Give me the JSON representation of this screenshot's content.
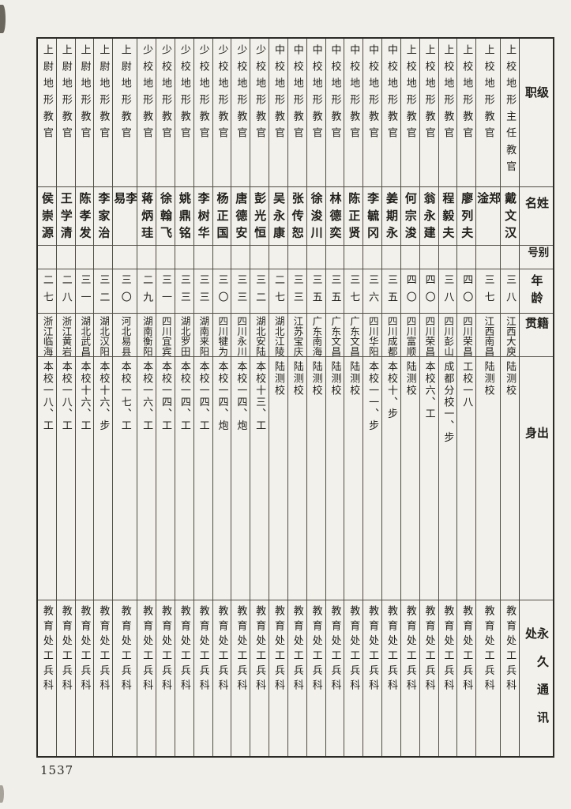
{
  "page": {
    "number": "1537"
  },
  "table": {
    "headers": {
      "rank": "级职",
      "name": "姓名",
      "alias": "别号",
      "age": "年龄",
      "native": "籍贯",
      "origin": "出身",
      "address": "永久通讯处"
    },
    "people": [
      {
        "rank": "上校地形主任教官",
        "name": "戴文汉",
        "alias": "",
        "age": "三八",
        "native": "江西大庾",
        "origin": "陆测校",
        "address": "教育处工兵科"
      },
      {
        "rank": "上校地形教官",
        "name": "郑淦",
        "alias": "",
        "age": "三七",
        "native": "江西南昌",
        "origin": "陆测校",
        "address": "教育处工兵科"
      },
      {
        "rank": "上校地形教官",
        "name": "廖列夫",
        "alias": "",
        "age": "四〇",
        "native": "四川荣昌",
        "origin": "工校一八",
        "address": "教育处工兵科"
      },
      {
        "rank": "上校地形教官",
        "name": "程毅夫",
        "alias": "",
        "age": "三八",
        "native": "四川彭山",
        "origin": "成都分校一、步",
        "address": "教育处工兵科"
      },
      {
        "rank": "上校地形教官",
        "name": "翁永建",
        "alias": "",
        "age": "四〇",
        "native": "四川荣昌",
        "origin": "本校六、工",
        "address": "教育处工兵科"
      },
      {
        "rank": "上校地形教官",
        "name": "何宗浚",
        "alias": "",
        "age": "四〇",
        "native": "四川富顺",
        "origin": "陆测校",
        "address": "教育处工兵科"
      },
      {
        "rank": "中校地形教官",
        "name": "姜期永",
        "alias": "",
        "age": "三五",
        "native": "四川成都",
        "origin": "本校十、步",
        "address": "教育处工兵科"
      },
      {
        "rank": "中校地形教官",
        "name": "李毓冈",
        "alias": "",
        "age": "三六",
        "native": "四川华阳",
        "origin": "本校一一、步",
        "address": "教育处工兵科"
      },
      {
        "rank": "中校地形教官",
        "name": "陈正贤",
        "alias": "",
        "age": "三七",
        "native": "广东文昌",
        "origin": "陆测校",
        "address": "教育处工兵科"
      },
      {
        "rank": "中校地形教官",
        "name": "林德奕",
        "alias": "",
        "age": "三五",
        "native": "广东文昌",
        "origin": "陆测校",
        "address": "教育处工兵科"
      },
      {
        "rank": "中校地形教官",
        "name": "徐浚川",
        "alias": "",
        "age": "三五",
        "native": "广东南海",
        "origin": "陆测校",
        "address": "教育处工兵科"
      },
      {
        "rank": "中校地形教官",
        "name": "张传恕",
        "alias": "",
        "age": "三三",
        "native": "江苏宝庆",
        "origin": "陆测校",
        "address": "教育处工兵科"
      },
      {
        "rank": "中校地形教官",
        "name": "吴永康",
        "alias": "",
        "age": "二七",
        "native": "湖北江陵",
        "origin": "陆测校",
        "address": "教育处工兵科"
      },
      {
        "rank": "少校地形教官",
        "name": "彭光恒",
        "alias": "",
        "age": "三二",
        "native": "湖北安陆",
        "origin": "本校十三、工",
        "address": "教育处工兵科"
      },
      {
        "rank": "少校地形教官",
        "name": "唐德安",
        "alias": "",
        "age": "三三",
        "native": "四川永川",
        "origin": "本校一四、炮",
        "address": "教育处工兵科"
      },
      {
        "rank": "少校地形教官",
        "name": "杨正国",
        "alias": "",
        "age": "三〇",
        "native": "四川犍为",
        "origin": "本校一四、炮",
        "address": "教育处工兵科"
      },
      {
        "rank": "少校地形教官",
        "name": "李树华",
        "alias": "",
        "age": "三三",
        "native": "湖南来阳",
        "origin": "本校一四、工",
        "address": "教育处工兵科"
      },
      {
        "rank": "少校地形教官",
        "name": "姚鼎铭",
        "alias": "",
        "age": "三三",
        "native": "湖北罗田",
        "origin": "本校一四、工",
        "address": "教育处工兵科"
      },
      {
        "rank": "少校地形教官",
        "name": "徐翰飞",
        "alias": "",
        "age": "三一",
        "native": "四川宜宾",
        "origin": "本校一四、工",
        "address": "教育处工兵科"
      },
      {
        "rank": "少校地形教官",
        "name": "蒋炳珪",
        "alias": "",
        "age": "二九",
        "native": "湖南衡阳",
        "origin": "本校一六、工",
        "address": "教育处工兵科"
      },
      {
        "rank": "上尉地形教官",
        "name": "李易",
        "alias": "",
        "age": "三〇",
        "native": "河北易县",
        "origin": "本校一七、工",
        "address": "教育处工兵科"
      },
      {
        "rank": "上尉地形教官",
        "name": "李家治",
        "alias": "",
        "age": "三二",
        "native": "湖北汉阳",
        "origin": "本校十六、步",
        "address": "教育处工兵科"
      },
      {
        "rank": "上尉地形教官",
        "name": "陈孝发",
        "alias": "",
        "age": "三一",
        "native": "湖北武昌",
        "origin": "本校十六、工",
        "address": "教育处工兵科"
      },
      {
        "rank": "上尉地形教官",
        "name": "王学清",
        "alias": "",
        "age": "二八",
        "native": "浙江黄岩",
        "origin": "本校一八、工",
        "address": "教育处工兵科"
      },
      {
        "rank": "上尉地形教官",
        "name": "侯崇源",
        "alias": "",
        "age": "二七",
        "native": "浙江临海",
        "origin": "本校一八、工",
        "address": "教育处工兵科"
      }
    ]
  }
}
